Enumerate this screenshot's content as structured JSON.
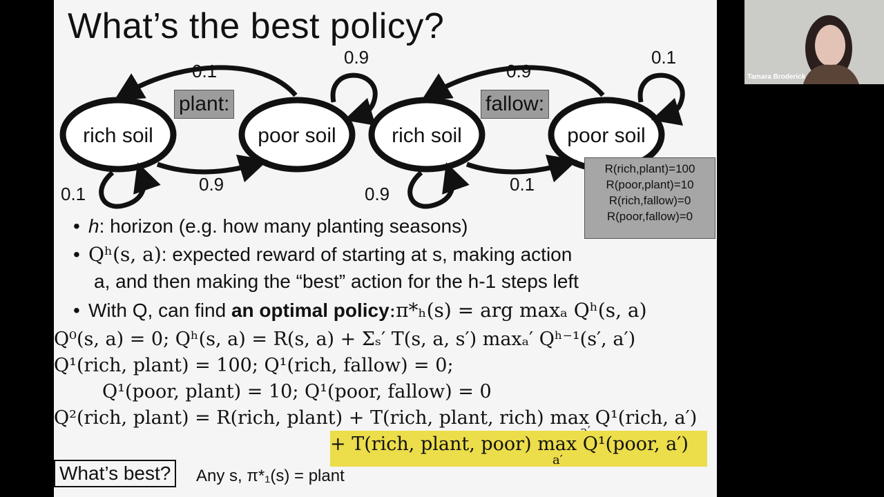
{
  "slide": {
    "title": "What’s the best policy?",
    "diagram_plant": {
      "action_label": "plant:",
      "state_rich": "rich soil",
      "state_poor": "poor soil",
      "prob_poor_to_rich": "0.1",
      "prob_poor_self": "0.9",
      "prob_rich_to_poor": "0.9",
      "prob_rich_self": "0.1"
    },
    "diagram_fallow": {
      "action_label": "fallow:",
      "state_rich": "rich soil",
      "state_poor": "poor soil",
      "prob_poor_to_rich": "0.9",
      "prob_poor_self": "0.1",
      "prob_rich_to_poor": "0.1",
      "prob_rich_self": "0.9"
    },
    "rewards": [
      "R(rich,plant)=100",
      "R(poor,plant)=10",
      "R(rich,fallow)=0",
      "R(poor,fallow)=0"
    ],
    "bullets": {
      "b1_var": "h",
      "b1_text": ": horizon (e.g. how many planting seasons)",
      "b2_math": "Qʰ(s, a)",
      "b2_text": ": expected reward of starting at s, making action",
      "b2_line2": "a, and then making the “best” action for the h-1 steps left",
      "b3_prefix": "With Q, can find ",
      "b3_bold": "an optimal policy",
      "b3_math": ":π*ₕ(s) = arg maxₐ Qʰ(s, a)"
    },
    "equations": {
      "e1": "Q⁰(s, a) = 0; Qʰ(s, a) = R(s, a) + Σₛ′ T(s, a, s′) maxₐ′ Qʰ⁻¹(s′, a′)",
      "e2": "Q¹(rich, plant) = 100; Q¹(rich, fallow) = 0;",
      "e3": "Q¹(poor, plant) = 10; Q¹(poor, fallow) = 0",
      "e4": "Q²(rich, plant) = R(rich, plant) + T(rich, plant, rich) max Q¹(rich, a′)",
      "e5": "+ T(rich, plant, poor) max Q¹(poor, a′)",
      "e4_sub": "a′",
      "e5_sub": "a′"
    },
    "question_box": "What’s best?",
    "answer": "Any s, π*₁(s) = plant"
  },
  "video": {
    "participant_name": "Tamara Broderick"
  },
  "colors": {
    "slide_bg": "#f5f5f5",
    "highlight": "#ecdd4a",
    "tag_bg": "#9c9c9c"
  }
}
